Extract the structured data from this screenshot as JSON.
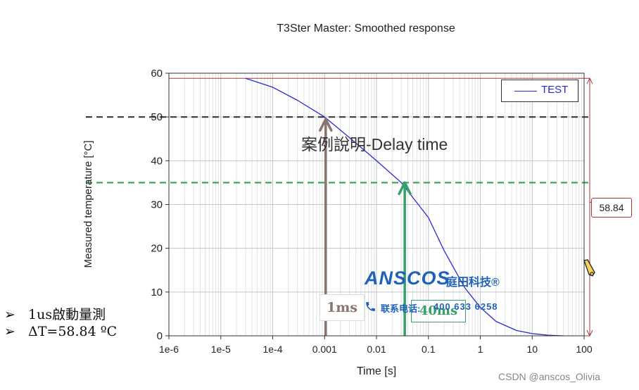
{
  "chart_data": {
    "type": "line",
    "title": "T3Ster Master: Smoothed response",
    "xlabel": "Time [s]",
    "ylabel": "Measured temperature [°C]",
    "x_scale": "log",
    "xlim": [
      1e-06,
      100
    ],
    "ylim": [
      0,
      60
    ],
    "x_ticks": [
      1e-06,
      1e-05,
      0.0001,
      0.001,
      0.01,
      0.1,
      1,
      10,
      100
    ],
    "x_tick_labels": [
      "1e-6",
      "1e-5",
      "1e-4",
      "0.001",
      "0.01",
      "0.1",
      "1",
      "10",
      "100"
    ],
    "y_ticks": [
      0,
      10,
      20,
      30,
      40,
      50,
      60
    ],
    "y_tick_labels": [
      "0",
      "10",
      "20",
      "30",
      "40",
      "50",
      "60"
    ],
    "grid": true,
    "legend": "top-right",
    "series": [
      {
        "name": "TEST",
        "color": "#2a2ad0",
        "x": [
          3e-05,
          0.0001,
          0.0003,
          0.001,
          0.003,
          0.01,
          0.03,
          0.1,
          0.2,
          0.5,
          1,
          2,
          5,
          10,
          20,
          40
        ],
        "y": [
          58.84,
          56.8,
          53.8,
          50.0,
          45.3,
          40.0,
          35.0,
          27.0,
          19.5,
          11.0,
          6.5,
          3.3,
          1.2,
          0.5,
          0.15,
          0.0
        ]
      }
    ],
    "reference_lines": [
      {
        "orientation": "horizontal",
        "y": 50,
        "style": "dashed",
        "color": "#3a3a3a"
      },
      {
        "orientation": "horizontal",
        "y": 35,
        "style": "dashed",
        "color": "#2fa35a"
      }
    ],
    "marker_arrows": [
      {
        "x": 0.00105,
        "y_from": 0,
        "y_to": 49.5,
        "color": "#8a7470",
        "label": "1ms"
      },
      {
        "x": 0.035,
        "y_from": 0,
        "y_to": 35,
        "color": "#35a06a",
        "label": "40ms"
      }
    ],
    "range_marker": {
      "y_from": 0,
      "y_to": 58.84,
      "label": "58.84",
      "color": "#a33a3a"
    },
    "annotation": "案例說明-Delay time"
  },
  "bullets": [
    {
      "arrow": "➢",
      "text": "1us啟動量測"
    },
    {
      "arrow": "➢",
      "text": "ΔT=58.84 ºC"
    }
  ],
  "logo": {
    "brand": "ANSCOS",
    "sub": "庭田科技®",
    "phone_label": "联系电话:",
    "phone_number": "400 633 6258",
    "color": "#1f62b8"
  },
  "watermark": "CSDN @anscos_Olivia",
  "icons": {
    "cursor": "pencil-cursor-icon",
    "phone": "phone-icon"
  }
}
